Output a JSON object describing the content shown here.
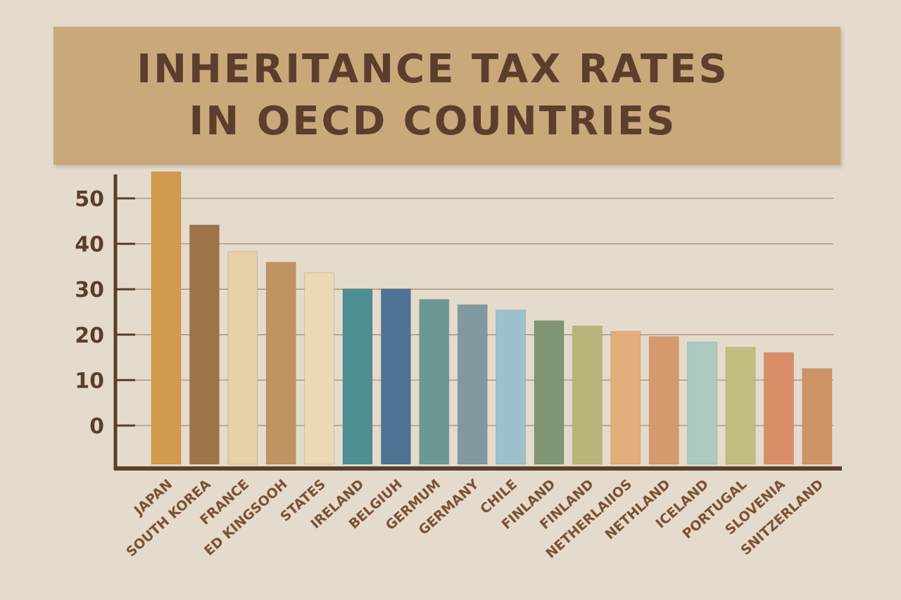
{
  "chart_data": {
    "type": "bar",
    "title": "INHERITANCE TAX RATES IN OECD COUNTRIES",
    "title_lines": [
      "INHERITANCE TAX RATES",
      "IN OECD COUNTRIES"
    ],
    "xlabel": "",
    "ylabel": "",
    "ylim": [
      0,
      50
    ],
    "yticks": [
      "50",
      "40",
      "30",
      "20",
      "10",
      "0"
    ],
    "grid": true,
    "categories": [
      "JAPAN",
      "SOUTH KOREA",
      "FRANCE",
      "ED KINGSOOH",
      "STATES",
      "IRELAND",
      "BELGIUH",
      "GERMUM",
      "GERMANY",
      "CHILE",
      "FINLAND",
      "FINLAND",
      "NETHERLAIIOS",
      "NETHLAND",
      "ICELAND",
      "PORTUGAL",
      "SLOVENIA",
      "SNITZERLAND"
    ],
    "values": [
      55,
      45,
      40,
      38,
      36,
      33,
      33,
      31,
      30,
      29,
      27,
      26,
      25,
      24,
      23,
      22,
      21,
      18
    ],
    "colors": [
      "#d39a4e",
      "#9c7448",
      "#e8d0a8",
      "#bf9462",
      "#ecd8b4",
      "#4d8e92",
      "#4e7293",
      "#6b9893",
      "#8199a0",
      "#9cc0cc",
      "#7f9774",
      "#b7b67a",
      "#e3ae7a",
      "#d6996b",
      "#acc9c2",
      "#c2bd80",
      "#d98d68",
      "#cf9466"
    ]
  }
}
